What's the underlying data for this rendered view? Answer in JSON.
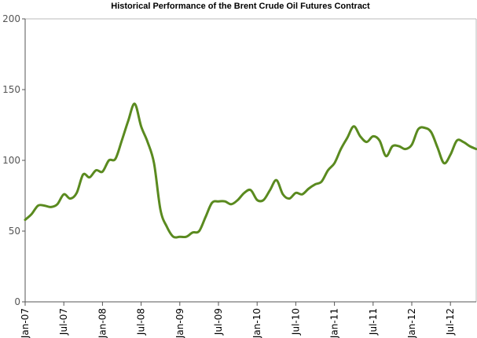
{
  "chart_data": {
    "type": "line",
    "title": "Historical Performance of the Brent Crude Oil Futures Contract",
    "xlabel": "",
    "ylabel": "",
    "ylim": [
      0,
      200
    ],
    "yticks": [
      0,
      50,
      100,
      150,
      200
    ],
    "xlim": [
      "2007-01",
      "2012-11"
    ],
    "xtick_labels": [
      "Jan-07",
      "Jul-07",
      "Jan-08",
      "Jul-08",
      "Jan-09",
      "Jul-09",
      "Jan-10",
      "Jul-10",
      "Jan-11",
      "Jul-11",
      "Jan-12",
      "Jul-12"
    ],
    "grid": false,
    "legend": "none",
    "series_color": "#5a8a1f",
    "series": [
      {
        "x": [
          "2007-01",
          "2007-02",
          "2007-03",
          "2007-04",
          "2007-05",
          "2007-06",
          "2007-07",
          "2007-08",
          "2007-09",
          "2007-10",
          "2007-11",
          "2007-12",
          "2008-01",
          "2008-02",
          "2008-03",
          "2008-04",
          "2008-05",
          "2008-06",
          "2008-07",
          "2008-08",
          "2008-09",
          "2008-10",
          "2008-11",
          "2008-12",
          "2009-01",
          "2009-02",
          "2009-03",
          "2009-04",
          "2009-05",
          "2009-06",
          "2009-07",
          "2009-08",
          "2009-09",
          "2009-10",
          "2009-11",
          "2009-12",
          "2010-01",
          "2010-02",
          "2010-03",
          "2010-04",
          "2010-05",
          "2010-06",
          "2010-07",
          "2010-08",
          "2010-09",
          "2010-10",
          "2010-11",
          "2010-12",
          "2011-01",
          "2011-02",
          "2011-03",
          "2011-04",
          "2011-05",
          "2011-06",
          "2011-07",
          "2011-08",
          "2011-09",
          "2011-10",
          "2011-11",
          "2011-12",
          "2012-01",
          "2012-02",
          "2012-03",
          "2012-04",
          "2012-05",
          "2012-06",
          "2012-07",
          "2012-08",
          "2012-09",
          "2012-10",
          "2012-11"
        ],
        "values": [
          58,
          62,
          68,
          68,
          67,
          69,
          76,
          73,
          77,
          90,
          88,
          93,
          92,
          100,
          101,
          114,
          128,
          140,
          124,
          113,
          98,
          65,
          53,
          46,
          46,
          46,
          49,
          50,
          60,
          70,
          71,
          71,
          69,
          72,
          77,
          79,
          72,
          72,
          79,
          86,
          76,
          73,
          77,
          76,
          80,
          83,
          85,
          93,
          98,
          108,
          116,
          124,
          117,
          113,
          117,
          114,
          103,
          110,
          110,
          108,
          111,
          122,
          123,
          120,
          109,
          98,
          104,
          114,
          113,
          110,
          108
        ]
      }
    ]
  }
}
